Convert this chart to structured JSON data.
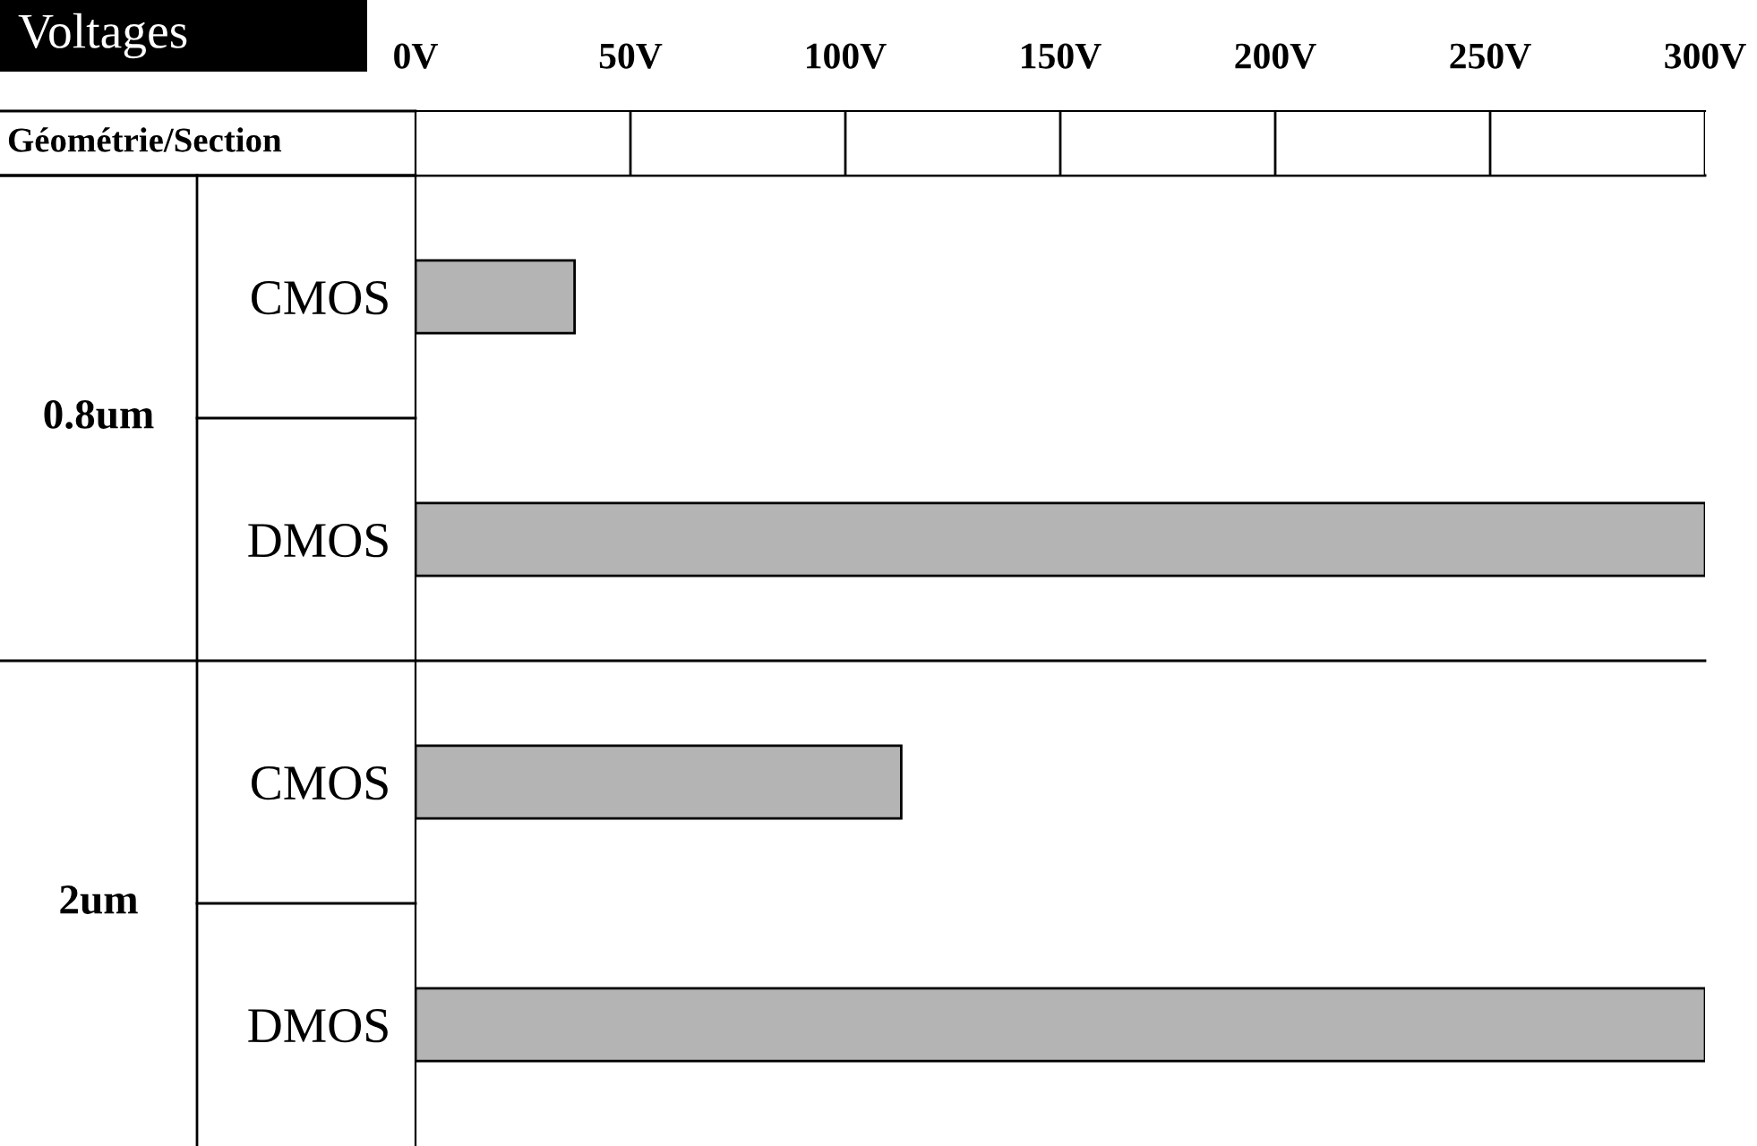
{
  "chart_data": {
    "type": "bar",
    "orientation": "horizontal",
    "xlabel": "Voltages",
    "ylabel": "Géométrie/Section",
    "categories": [
      "CMOS",
      "DMOS",
      "CMOS",
      "DMOS"
    ],
    "values": [
      37,
      300,
      113,
      300
    ],
    "color": "#b4b4b4",
    "annotations": [
      "0.8um",
      "2um"
    ],
    "xlim": [
      0,
      300
    ],
    "xticks": [
      {
        "value": 0,
        "label": "0V"
      },
      {
        "value": 50,
        "label": "50V"
      },
      {
        "value": 100,
        "label": "100V"
      },
      {
        "value": 150,
        "label": "150V"
      },
      {
        "value": 200,
        "label": "200V"
      },
      {
        "value": 250,
        "label": "250V"
      },
      {
        "value": 300,
        "label": "300V"
      }
    ],
    "grid": false
  }
}
